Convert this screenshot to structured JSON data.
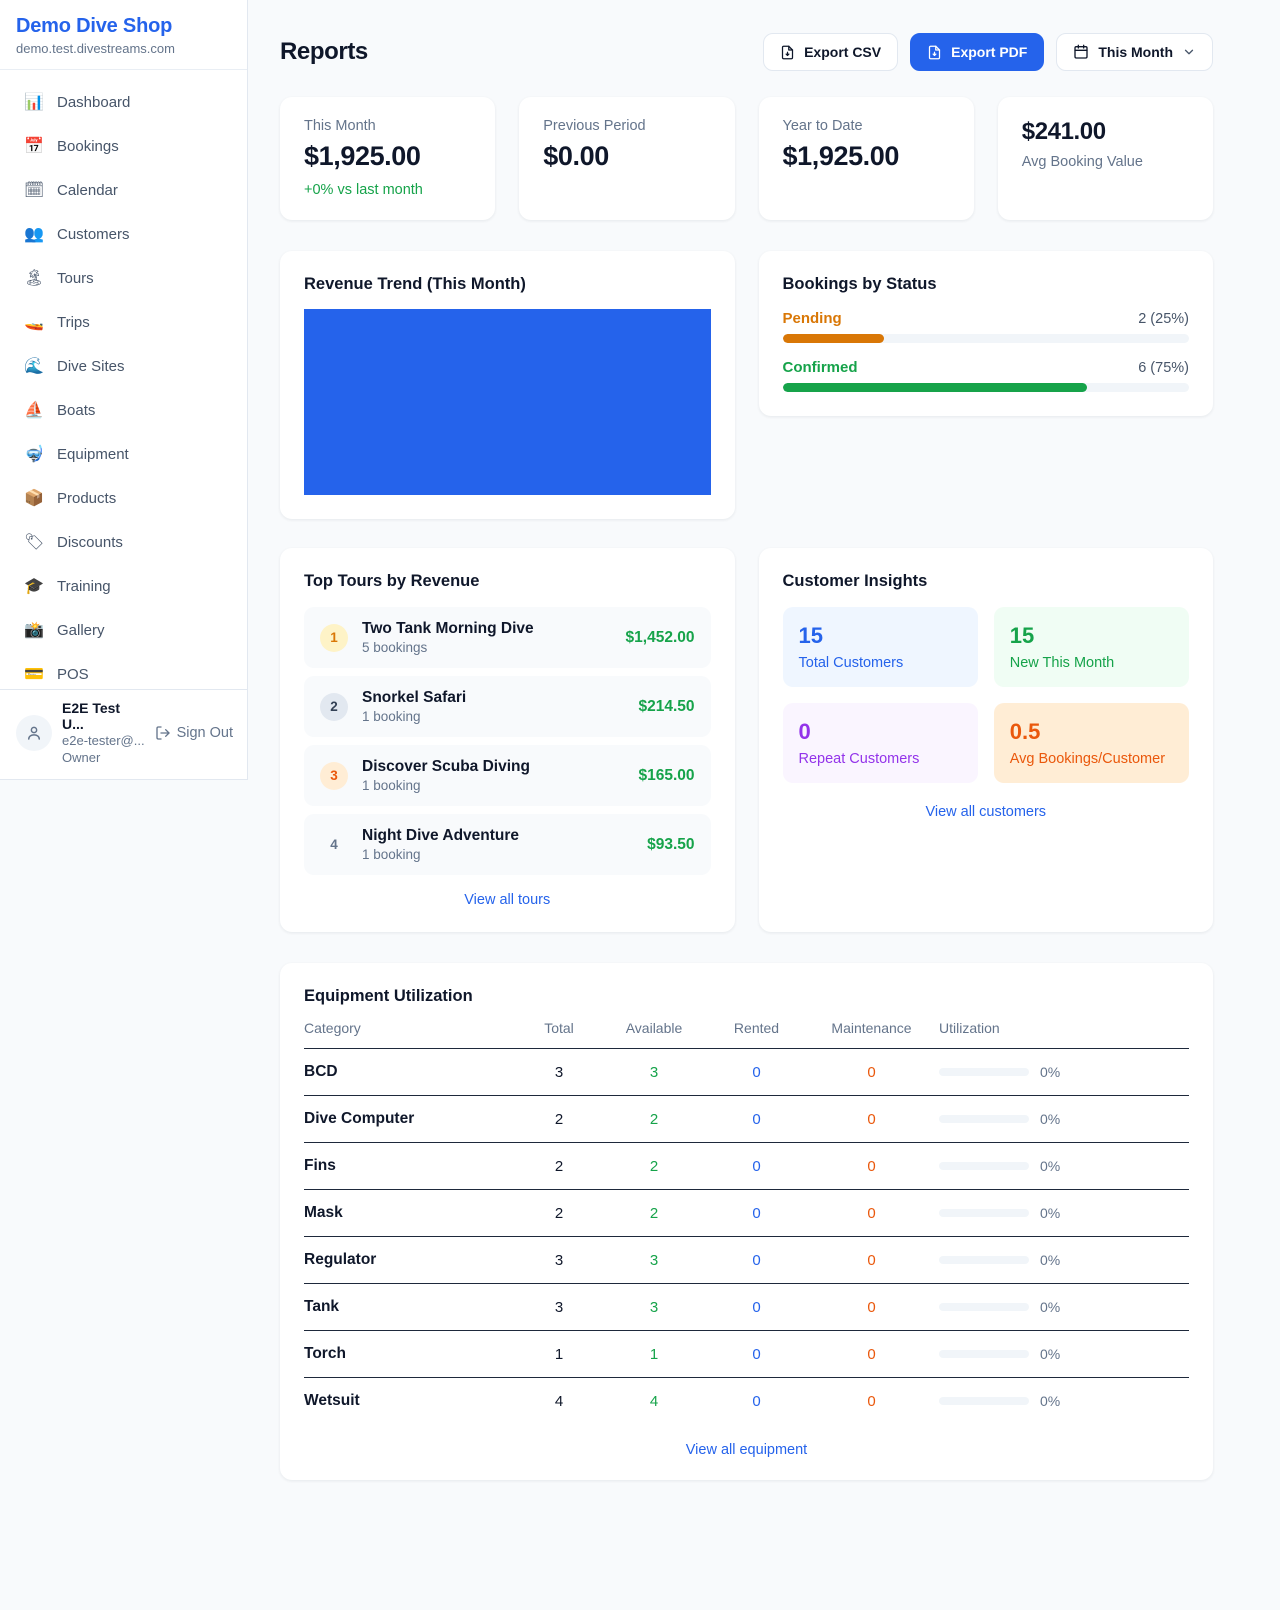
{
  "colors": {
    "accent_blue": "#2563eb",
    "green": "#16a34a",
    "orange": "#d97706",
    "red_orange": "#ea580c",
    "purple": "#9333ea",
    "chart_fill": "#2563eb"
  },
  "sidebar": {
    "shop_name": "Demo Dive Shop",
    "shop_domain": "demo.test.divestreams.com",
    "items": [
      {
        "icon": "📊",
        "label": "Dashboard"
      },
      {
        "icon": "📅",
        "label": "Bookings"
      },
      {
        "icon": "🗓",
        "label": "Calendar"
      },
      {
        "icon": "👥",
        "label": "Customers"
      },
      {
        "icon": "🏝",
        "label": "Tours"
      },
      {
        "icon": "🚤",
        "label": "Trips"
      },
      {
        "icon": "🌊",
        "label": "Dive Sites"
      },
      {
        "icon": "⛵",
        "label": "Boats"
      },
      {
        "icon": "🤿",
        "label": "Equipment"
      },
      {
        "icon": "📦",
        "label": "Products"
      },
      {
        "icon": "🏷",
        "label": "Discounts"
      },
      {
        "icon": "🎓",
        "label": "Training"
      },
      {
        "icon": "📸",
        "label": "Gallery"
      },
      {
        "icon": "💳",
        "label": "POS"
      }
    ],
    "user": {
      "name": "E2E Test U...",
      "email": "e2e-tester@...",
      "role": "Owner",
      "sign_out_label": "Sign Out"
    }
  },
  "header": {
    "title": "Reports",
    "export_csv_label": "Export CSV",
    "export_pdf_label": "Export PDF",
    "period_label": "This Month"
  },
  "stats": {
    "cards": [
      {
        "label": "This Month",
        "value": "$1,925.00",
        "delta": "+0% vs last month"
      },
      {
        "label": "Previous Period",
        "value": "$0.00"
      },
      {
        "label": "Year to Date",
        "value": "$1,925.00"
      },
      {
        "label": "Avg Booking Value",
        "value": "$241.00"
      }
    ]
  },
  "revenue_trend": {
    "title": "Revenue Trend (This Month)",
    "fill_color": "#2563eb"
  },
  "bookings_by_status": {
    "title": "Bookings by Status",
    "rows": [
      {
        "label": "Pending",
        "count_text": "2 (25%)",
        "pct": 25
      },
      {
        "label": "Confirmed",
        "count_text": "6 (75%)",
        "pct": 75
      }
    ]
  },
  "top_tours": {
    "title": "Top Tours by Revenue",
    "rows": [
      {
        "rank": "1",
        "name": "Two Tank Morning Dive",
        "bookings": "5 bookings",
        "revenue": "$1,452.00"
      },
      {
        "rank": "2",
        "name": "Snorkel Safari",
        "bookings": "1 booking",
        "revenue": "$214.50"
      },
      {
        "rank": "3",
        "name": "Discover Scuba Diving",
        "bookings": "1 booking",
        "revenue": "$165.00"
      },
      {
        "rank": "4",
        "name": "Night Dive Adventure",
        "bookings": "1 booking",
        "revenue": "$93.50"
      }
    ],
    "link_label": "View all tours"
  },
  "customer_insights": {
    "title": "Customer Insights",
    "tiles": [
      {
        "value": "15",
        "label": "Total Customers"
      },
      {
        "value": "15",
        "label": "New This Month"
      },
      {
        "value": "0",
        "label": "Repeat Customers"
      },
      {
        "value": "0.5",
        "label": "Avg Bookings/Customer"
      }
    ],
    "link_label": "View all customers"
  },
  "equipment": {
    "title": "Equipment Utilization",
    "columns": [
      "Category",
      "Total",
      "Available",
      "Rented",
      "Maintenance",
      "Utilization"
    ],
    "rows": [
      {
        "category": "BCD",
        "total": "3",
        "available": "3",
        "rented": "0",
        "maintenance": "0",
        "utilization_pct": 0,
        "utilization_label": "0%"
      },
      {
        "category": "Dive Computer",
        "total": "2",
        "available": "2",
        "rented": "0",
        "maintenance": "0",
        "utilization_pct": 0,
        "utilization_label": "0%"
      },
      {
        "category": "Fins",
        "total": "2",
        "available": "2",
        "rented": "0",
        "maintenance": "0",
        "utilization_pct": 0,
        "utilization_label": "0%"
      },
      {
        "category": "Mask",
        "total": "2",
        "available": "2",
        "rented": "0",
        "maintenance": "0",
        "utilization_pct": 0,
        "utilization_label": "0%"
      },
      {
        "category": "Regulator",
        "total": "3",
        "available": "3",
        "rented": "0",
        "maintenance": "0",
        "utilization_pct": 0,
        "utilization_label": "0%"
      },
      {
        "category": "Tank",
        "total": "3",
        "available": "3",
        "rented": "0",
        "maintenance": "0",
        "utilization_pct": 0,
        "utilization_label": "0%"
      },
      {
        "category": "Torch",
        "total": "1",
        "available": "1",
        "rented": "0",
        "maintenance": "0",
        "utilization_pct": 0,
        "utilization_label": "0%"
      },
      {
        "category": "Wetsuit",
        "total": "4",
        "available": "4",
        "rented": "0",
        "maintenance": "0",
        "utilization_pct": 0,
        "utilization_label": "0%"
      }
    ],
    "link_label": "View all equipment"
  }
}
